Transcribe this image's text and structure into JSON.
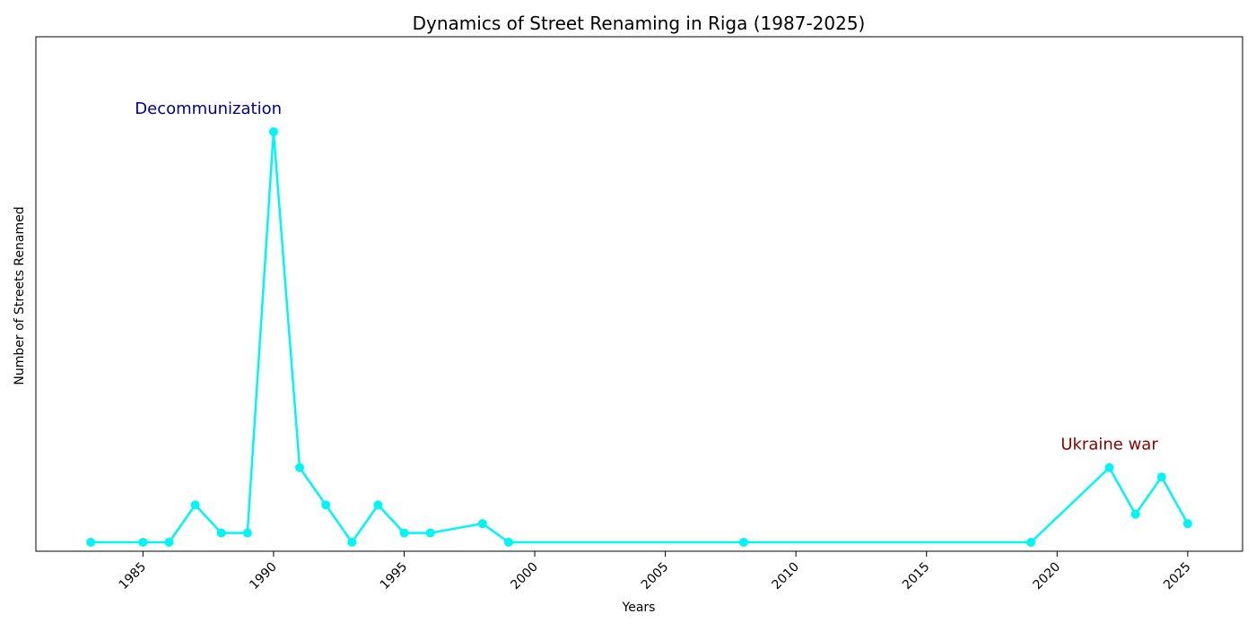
{
  "chart_data": {
    "type": "line",
    "title": "Dynamics of Street Renaming in Riga (1987-2025)",
    "xlabel": "Years",
    "ylabel": "Number of Streets Renamed",
    "xlim": [
      1980.9,
      1982.1
    ],
    "x_ticks": [
      1985,
      1990,
      1995,
      2000,
      2005,
      2010,
      2015,
      2020,
      2025
    ],
    "x_range": [
      1980.9,
      2027.1
    ],
    "y_range": [
      0,
      46
    ],
    "y_ticks_shown": false,
    "grid": false,
    "line_color": "#00f5f5",
    "series": [
      {
        "x": [
          1983,
          1985,
          1986,
          1987,
          1988,
          1989,
          1990,
          1991,
          1992,
          1993,
          1994,
          1995,
          1996,
          1998,
          1999,
          2008,
          2019,
          2022,
          2023,
          2024,
          2025
        ],
        "values": [
          1,
          1,
          1,
          5,
          2,
          2,
          45,
          9,
          5,
          1,
          5,
          2,
          2,
          3,
          1,
          1,
          1,
          9,
          4,
          8,
          3
        ]
      }
    ],
    "annotations": [
      {
        "text": "Decommunization",
        "x": 1987.5,
        "y": 47.5,
        "color": "#00008b"
      },
      {
        "text": "Ukraine war",
        "x": 2022.0,
        "y": 11.5,
        "color": "#8b0000"
      }
    ]
  }
}
